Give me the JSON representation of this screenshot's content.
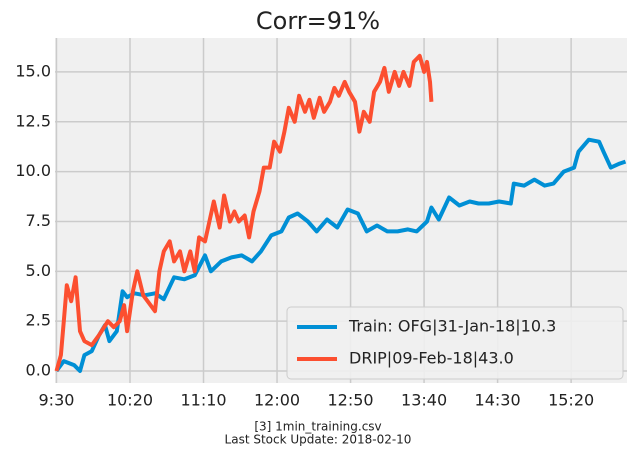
{
  "chart_data": {
    "type": "line",
    "title": "Corr=91%",
    "notes": [
      "[3] 1min_training.csv",
      "Last Stock Update: 2018-02-10"
    ],
    "xlim": [
      -1,
      388
    ],
    "ylim": [
      -0.6,
      16.7
    ],
    "xticks": [
      {
        "value": 0,
        "label": "9:30"
      },
      {
        "value": 50,
        "label": "10:20"
      },
      {
        "value": 100,
        "label": "11:10"
      },
      {
        "value": 150,
        "label": "12:00"
      },
      {
        "value": 200,
        "label": "12:50"
      },
      {
        "value": 250,
        "label": "13:40"
      },
      {
        "value": 300,
        "label": "14:30"
      },
      {
        "value": 350,
        "label": "15:20"
      }
    ],
    "yticks": [
      {
        "value": 0,
        "label": "0.0"
      },
      2.5,
      {
        "value": 5,
        "label": "5.0"
      },
      7.5,
      {
        "value": 10,
        "label": "10.0"
      },
      12.5,
      {
        "value": 15,
        "label": "15.0"
      }
    ],
    "grid": true,
    "legend": "lower right",
    "series": [
      {
        "name": "Train: OFG|31-Jan-18|10.3",
        "color": "#008fd5",
        "x": [
          0,
          5,
          12,
          16,
          19,
          24,
          29,
          33,
          36,
          41,
          45,
          48,
          53,
          60,
          67,
          73,
          80,
          87,
          94,
          101,
          105,
          112,
          119,
          126,
          133,
          139,
          146,
          153,
          158,
          164,
          171,
          177,
          184,
          191,
          198,
          205,
          211,
          218,
          225,
          232,
          239,
          245,
          252,
          255,
          260,
          267,
          274,
          281,
          287,
          294,
          301,
          309,
          311,
          318,
          325,
          332,
          338,
          345,
          352,
          355,
          362,
          369,
          372,
          377,
          383,
          387
        ],
        "values": [
          0,
          0.5,
          0.3,
          0,
          0.8,
          1.0,
          1.8,
          2.3,
          1.5,
          2.0,
          4.0,
          3.7,
          3.9,
          3.8,
          3.9,
          3.6,
          4.7,
          4.6,
          4.8,
          5.8,
          5.0,
          5.5,
          5.7,
          5.8,
          5.5,
          6.0,
          6.8,
          7.0,
          7.7,
          7.9,
          7.5,
          7.0,
          7.6,
          7.2,
          8.1,
          7.9,
          7.0,
          7.3,
          7.0,
          7.0,
          7.1,
          7.0,
          7.5,
          8.2,
          7.6,
          8.7,
          8.3,
          8.5,
          8.4,
          8.4,
          8.5,
          8.4,
          9.4,
          9.3,
          9.6,
          9.3,
          9.4,
          10.0,
          10.2,
          11.0,
          11.6,
          11.5,
          11.0,
          10.2,
          10.4,
          10.5
        ]
      },
      {
        "name": "DRIP|09-Feb-18|43.0",
        "color": "#fc4f30",
        "x": [
          0,
          3,
          5,
          7,
          10,
          13,
          16,
          19,
          24,
          29,
          35,
          39,
          43,
          46,
          48,
          52,
          55,
          59,
          62,
          67,
          70,
          73,
          77,
          80,
          84,
          87,
          91,
          94,
          97,
          101,
          104,
          107,
          111,
          114,
          118,
          121,
          124,
          128,
          131,
          134,
          138,
          141,
          145,
          148,
          152,
          155,
          158,
          162,
          165,
          169,
          172,
          175,
          179,
          182,
          186,
          189,
          192,
          196,
          199,
          203,
          206,
          209,
          213,
          216,
          220,
          223,
          226,
          230,
          233,
          236,
          240,
          243,
          247,
          250,
          252,
          254,
          255
        ],
        "values": [
          0,
          0.8,
          2.5,
          4.3,
          3.5,
          4.7,
          2.0,
          1.5,
          1.3,
          1.8,
          2.5,
          2.2,
          2.5,
          3.3,
          2.0,
          4.0,
          5.0,
          3.8,
          3.5,
          3.0,
          5.0,
          6.0,
          6.5,
          5.5,
          6.0,
          5.0,
          6.0,
          5.0,
          6.7,
          6.5,
          7.5,
          8.5,
          7.2,
          8.8,
          7.5,
          8.0,
          7.5,
          7.8,
          6.7,
          8.0,
          9.0,
          10.2,
          10.2,
          11.5,
          11.0,
          12.0,
          13.2,
          12.5,
          13.8,
          13.0,
          13.6,
          12.7,
          13.7,
          13.0,
          13.5,
          14.2,
          13.8,
          14.5,
          14.0,
          13.5,
          12.0,
          13.0,
          12.5,
          14.0,
          14.5,
          15.2,
          14.0,
          15.0,
          14.3,
          15.0,
          14.3,
          15.5,
          15.8,
          15.0,
          15.5,
          14.5,
          13.5
        ]
      }
    ]
  }
}
